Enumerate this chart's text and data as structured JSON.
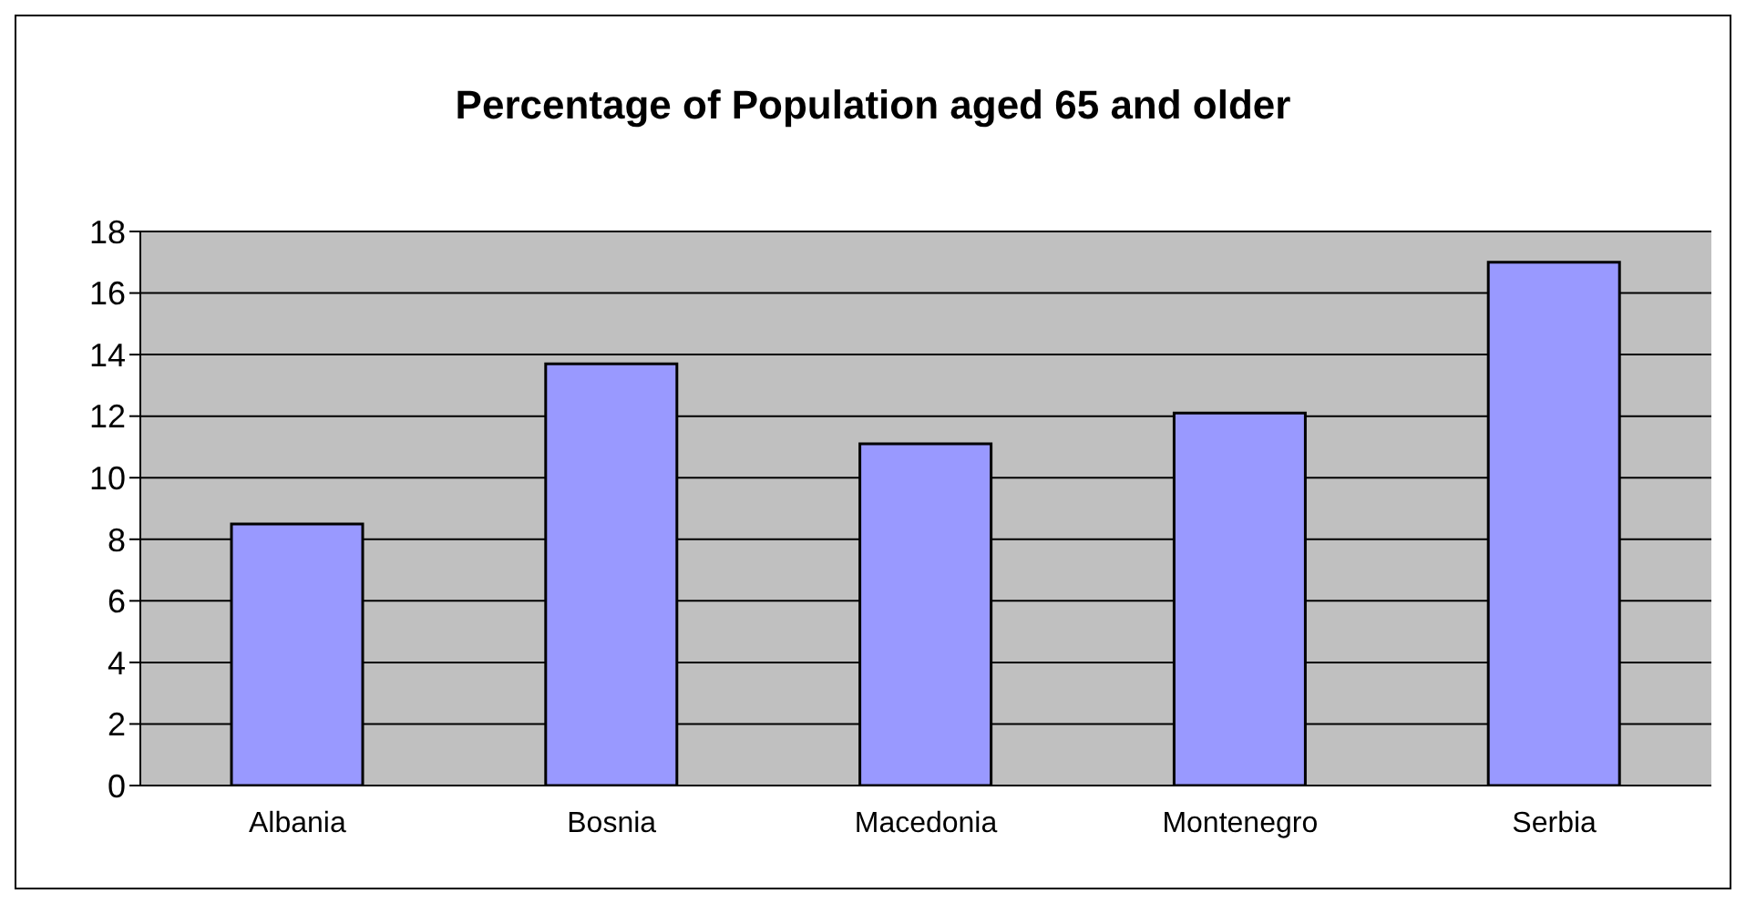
{
  "chart_data": {
    "type": "bar",
    "title": "Percentage of Population aged 65 and older",
    "categories": [
      "Albania",
      "Bosnia",
      "Macedonia",
      "Montenegro",
      "Serbia"
    ],
    "values": [
      8.5,
      13.7,
      11.1,
      12.1,
      17.0
    ],
    "color": "#9999ff",
    "ylim": [
      0,
      18
    ],
    "yticks": [
      0,
      2,
      4,
      6,
      8,
      10,
      12,
      14,
      16,
      18
    ],
    "grid": "y",
    "legend": false
  }
}
